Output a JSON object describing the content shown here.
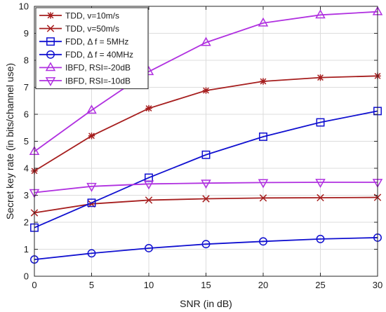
{
  "chart_data": {
    "type": "line",
    "title": "",
    "xlabel": "SNR (in dB)",
    "ylabel": "Secret key rate (in bits/channel use)",
    "x": [
      0,
      5,
      10,
      15,
      20,
      25,
      30
    ],
    "xticks": [
      "0",
      "5",
      "10",
      "15",
      "20",
      "25",
      "30"
    ],
    "yticks": [
      "0",
      "1",
      "2",
      "3",
      "4",
      "5",
      "6",
      "7",
      "8",
      "9",
      "10"
    ],
    "xlim": [
      0,
      30
    ],
    "ylim": [
      0,
      10
    ],
    "grid": true,
    "legend_position": "top-left",
    "series": [
      {
        "name": "TDD, v=10m/s",
        "color": "#a61e1e",
        "marker": "asterisk",
        "values": [
          3.9,
          5.2,
          6.22,
          6.88,
          7.22,
          7.36,
          7.42
        ]
      },
      {
        "name": "TDD, v=50m/s",
        "color": "#a61e1e",
        "marker": "x",
        "values": [
          2.35,
          2.68,
          2.82,
          2.87,
          2.9,
          2.91,
          2.92
        ]
      },
      {
        "name": "FDD, Δ f = 5MHz",
        "color": "#1010d0",
        "marker": "square",
        "values": [
          1.8,
          2.72,
          3.65,
          4.5,
          5.17,
          5.7,
          6.12
        ]
      },
      {
        "name": "FDD, Δ f = 40MHz",
        "color": "#1010d0",
        "marker": "circle",
        "values": [
          0.62,
          0.85,
          1.04,
          1.19,
          1.29,
          1.38,
          1.43
        ]
      },
      {
        "name": "IBFD, RSI=-20dB",
        "color": "#b030e0",
        "marker": "triangle-up",
        "values": [
          4.62,
          6.15,
          7.58,
          8.66,
          9.38,
          9.68,
          9.8
        ]
      },
      {
        "name": "IBFD, RSI=-10dB",
        "color": "#b030e0",
        "marker": "triangle-down",
        "values": [
          3.1,
          3.33,
          3.42,
          3.45,
          3.47,
          3.48,
          3.48
        ]
      }
    ]
  }
}
